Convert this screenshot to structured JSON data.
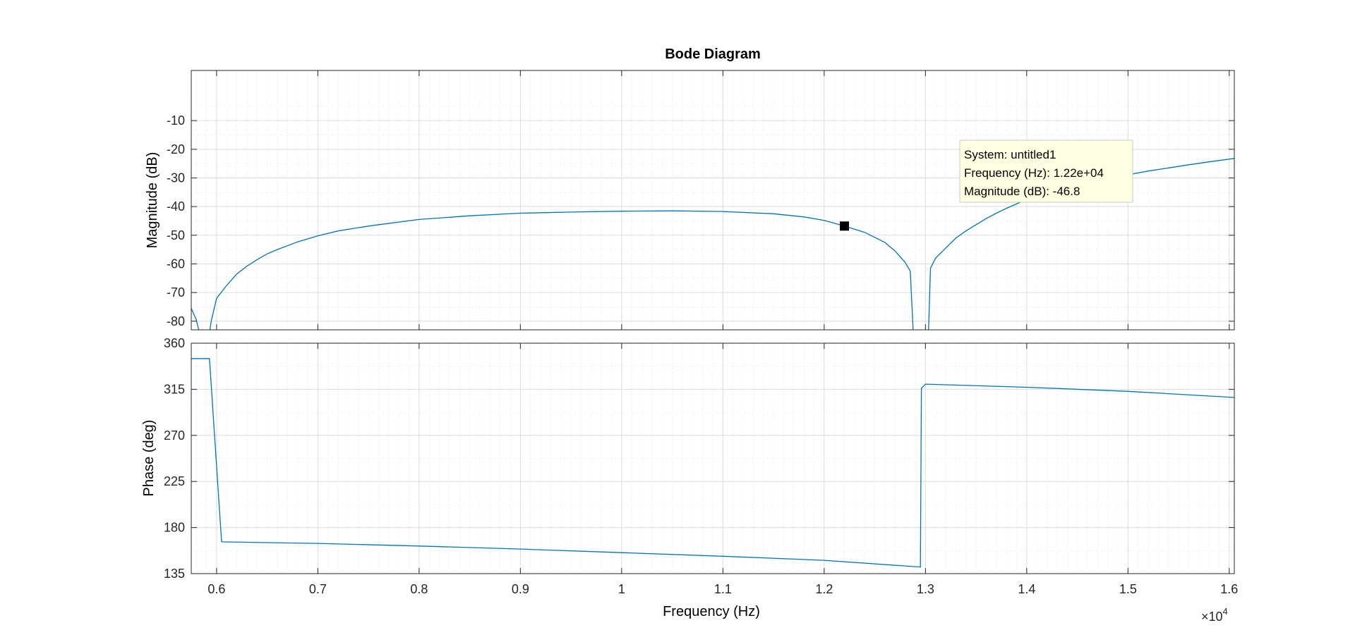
{
  "chart_data": {
    "type": "line",
    "title": "Bode Diagram",
    "xlabel": "Frequency  (Hz)",
    "x_multiplier_label": "×10",
    "x_multiplier_exponent": "4",
    "x_tick_labels": [
      "0.6",
      "0.7",
      "0.8",
      "0.9",
      "1",
      "1.1",
      "1.2",
      "1.3",
      "1.4",
      "1.5",
      "1.6"
    ],
    "xlim": [
      5750,
      16050
    ],
    "grid": true,
    "line_color": "#0072BD",
    "magnitude": {
      "ylabel": "Magnitude (dB)",
      "ylim": [
        -83,
        7.5
      ],
      "y_tick_labels": [
        "-10",
        "-20",
        "-30",
        "-40",
        "-50",
        "-60",
        "-70",
        "-80"
      ],
      "series": [
        {
          "segments": [
            {
              "x": [
                5750,
                5800,
                5830
              ],
              "y": [
                -75.5,
                -79.5,
                -84
              ]
            },
            {
              "x": [
                5930,
                5950,
                6000,
                6100,
                6200,
                6300,
                6400,
                6500,
                6600,
                6800,
                7000,
                7200,
                7500,
                8000,
                8500,
                9000,
                9500,
                10000,
                10500,
                11000,
                11500,
                11800,
                12000,
                12200,
                12400,
                12600,
                12700,
                12800,
                12850,
                12880
              ],
              "y": [
                -84,
                -79.5,
                -72,
                -67.5,
                -63.5,
                -60.8,
                -58.5,
                -56.5,
                -55,
                -52.3,
                -50.2,
                -48.5,
                -46.8,
                -44.5,
                -43.2,
                -42.3,
                -41.9,
                -41.6,
                -41.5,
                -41.7,
                -42.5,
                -43.6,
                -44.8,
                -46.8,
                -49,
                -52.5,
                -55.5,
                -59.5,
                -62.5,
                -84
              ]
            },
            {
              "x": [
                13030,
                13050,
                13100,
                13200,
                13300,
                13400,
                13500,
                13600,
                13700,
                13800,
                14000,
                14200,
                14400,
                14600,
                14800,
                15000,
                15200,
                15400,
                15600,
                15800,
                16050
              ],
              "y": [
                -84,
                -61.5,
                -58,
                -54.5,
                -51,
                -48.5,
                -46.3,
                -44.2,
                -42.3,
                -40.6,
                -37.5,
                -35.2,
                -33.3,
                -31.7,
                -30.2,
                -28.9,
                -27.6,
                -26.5,
                -25.4,
                -24.4,
                -23.2
              ]
            }
          ]
        }
      ],
      "datatip": {
        "x": 12200,
        "y": -46.8,
        "lines": [
          "System: untitled1",
          "Frequency (Hz): 1.22e+04",
          "Magnitude (dB): -46.8"
        ]
      }
    },
    "phase": {
      "ylabel": "Phase (deg)",
      "ylim": [
        135,
        360
      ],
      "y_tick_labels": [
        "360",
        "315",
        "270",
        "225",
        "180",
        "135"
      ],
      "series": [
        {
          "x": [
            5750,
            5930,
            6050,
            7000,
            8000,
            9000,
            10000,
            11000,
            12000,
            12950,
            12960,
            13000,
            14000,
            15000,
            16050
          ],
          "y": [
            345,
            345,
            166,
            164.5,
            162,
            159,
            155.5,
            152,
            148,
            141.5,
            316,
            320,
            317,
            313,
            307
          ]
        }
      ]
    }
  }
}
